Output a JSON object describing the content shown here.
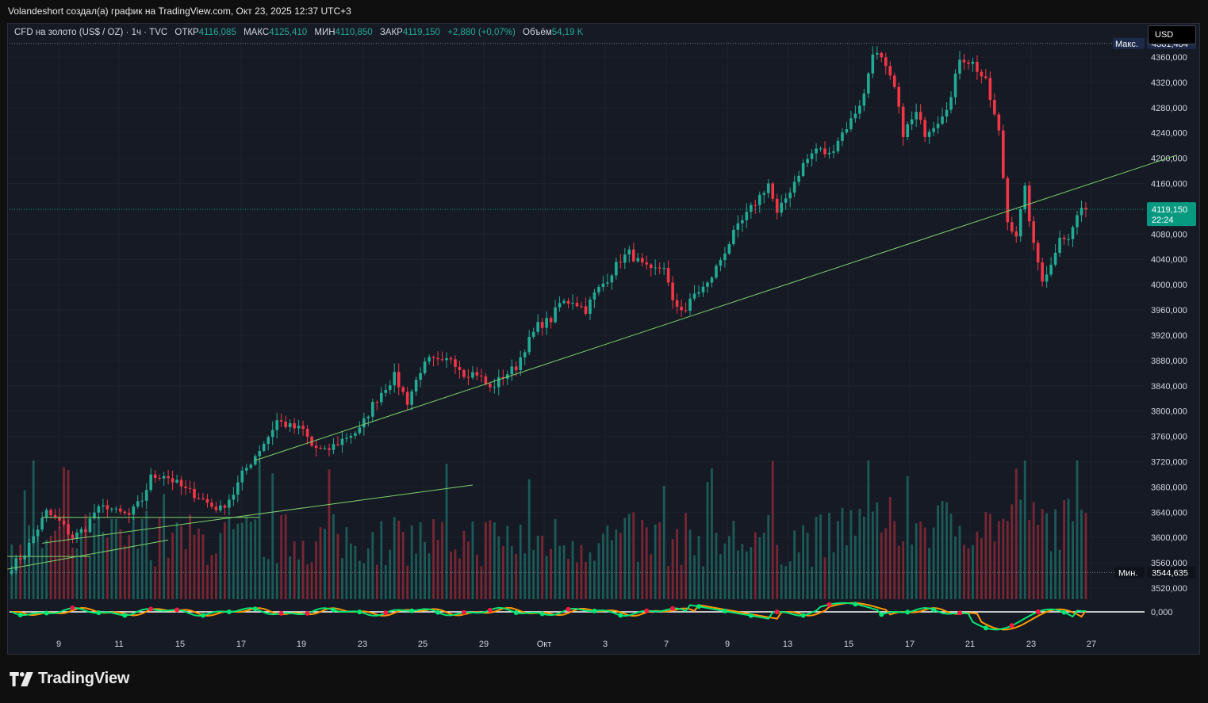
{
  "caption": "Volandeshort создал(а) график на TradingView.com, Окт 23, 2025 12:37 UTC+3",
  "legend": {
    "symbol": "CFD на золото (US$ / OZ) · 1ч · TVC",
    "open_label": "ОТКР",
    "open": "4116,085",
    "high_label": "МАКС",
    "high": "4125,410",
    "low_label": "МИН",
    "low": "4110,850",
    "close_label": "ЗАКР",
    "close": "4119,150",
    "change": "+2,880 (+0,07%)",
    "volume_label": "Объём",
    "volume": "54,19 K"
  },
  "currency": "USD",
  "brand": "TradingView",
  "colors": {
    "up": "#22ab94",
    "down": "#f23645",
    "trendline": "#7cd16a",
    "price_badge": "#089981",
    "max_badge": "#1e2a4a"
  },
  "chart_data": {
    "type": "candlestick",
    "instrument": "CFD на золото (US$ / OZ)",
    "timeframe": "1ч",
    "ylim": [
      3500,
      4390
    ],
    "y_ticks": [
      "4360,000",
      "4320,000",
      "4280,000",
      "4240,000",
      "4200,000",
      "4160,000",
      "4080,000",
      "4040,000",
      "4000,000",
      "3960,000",
      "3920,000",
      "3880,000",
      "3840,000",
      "3800,000",
      "3760,000",
      "3720,000",
      "3680,000",
      "3640,000",
      "3600,000",
      "3560,000",
      "3520,000"
    ],
    "y_tick_values": [
      4360,
      4320,
      4280,
      4240,
      4200,
      4160,
      4080,
      4040,
      4000,
      3960,
      3920,
      3880,
      3840,
      3800,
      3760,
      3720,
      3680,
      3640,
      3600,
      3560,
      3520
    ],
    "x_ticks": [
      "9",
      "11",
      "15",
      "17",
      "19",
      "23",
      "25",
      "29",
      "Окт",
      "3",
      "7",
      "9",
      "13",
      "15",
      "17",
      "21",
      "23",
      "27"
    ],
    "max_label": "Макс.",
    "max_value": "4381,484",
    "min_label": "Мин.",
    "min_value": "3544,635",
    "last_price": "4119,150",
    "countdown": "22:24",
    "oscillator_zero": "0,000",
    "price_path": [
      [
        0,
        3555
      ],
      [
        3,
        3575
      ],
      [
        6,
        3615
      ],
      [
        8,
        3640
      ],
      [
        11,
        3625
      ],
      [
        14,
        3600
      ],
      [
        17,
        3615
      ],
      [
        19,
        3640
      ],
      [
        22,
        3650
      ],
      [
        24,
        3640
      ],
      [
        27,
        3635
      ],
      [
        30,
        3660
      ],
      [
        32,
        3695
      ],
      [
        35,
        3700
      ],
      [
        38,
        3685
      ],
      [
        40,
        3675
      ],
      [
        43,
        3665
      ],
      [
        46,
        3650
      ],
      [
        48,
        3645
      ],
      [
        51,
        3670
      ],
      [
        53,
        3700
      ],
      [
        56,
        3730
      ],
      [
        59,
        3760
      ],
      [
        61,
        3785
      ],
      [
        64,
        3775
      ],
      [
        67,
        3770
      ],
      [
        69,
        3745
      ],
      [
        72,
        3735
      ],
      [
        74,
        3745
      ],
      [
        77,
        3760
      ],
      [
        80,
        3770
      ],
      [
        83,
        3810
      ],
      [
        85,
        3830
      ],
      [
        88,
        3855
      ],
      [
        91,
        3815
      ],
      [
        94,
        3865
      ],
      [
        96,
        3880
      ],
      [
        99,
        3875
      ],
      [
        101,
        3885
      ],
      [
        104,
        3860
      ],
      [
        107,
        3860
      ],
      [
        110,
        3835
      ],
      [
        113,
        3855
      ],
      [
        116,
        3870
      ],
      [
        118,
        3900
      ],
      [
        121,
        3935
      ],
      [
        124,
        3945
      ],
      [
        126,
        3970
      ],
      [
        129,
        3975
      ],
      [
        132,
        3960
      ],
      [
        134,
        3985
      ],
      [
        137,
        4010
      ],
      [
        140,
        4040
      ],
      [
        142,
        4050
      ],
      [
        145,
        4030
      ],
      [
        147,
        4020
      ],
      [
        150,
        4030
      ],
      [
        152,
        3970
      ],
      [
        155,
        3960
      ],
      [
        157,
        3985
      ],
      [
        160,
        4000
      ],
      [
        163,
        4040
      ],
      [
        166,
        4080
      ],
      [
        168,
        4100
      ],
      [
        171,
        4130
      ],
      [
        174,
        4160
      ],
      [
        176,
        4110
      ],
      [
        179,
        4150
      ],
      [
        182,
        4190
      ],
      [
        185,
        4215
      ],
      [
        188,
        4205
      ],
      [
        190,
        4230
      ],
      [
        193,
        4260
      ],
      [
        196,
        4300
      ],
      [
        198,
        4370
      ],
      [
        200,
        4355
      ],
      [
        203,
        4310
      ],
      [
        205,
        4240
      ],
      [
        208,
        4270
      ],
      [
        210,
        4240
      ],
      [
        213,
        4260
      ],
      [
        216,
        4295
      ],
      [
        218,
        4360
      ],
      [
        221,
        4350
      ],
      [
        224,
        4320
      ],
      [
        227,
        4240
      ],
      [
        229,
        4100
      ],
      [
        231,
        4080
      ],
      [
        233,
        4150
      ],
      [
        235,
        4060
      ],
      [
        237,
        4010
      ],
      [
        239,
        4030
      ],
      [
        241,
        4080
      ],
      [
        243,
        4070
      ],
      [
        245,
        4110
      ],
      [
        247,
        4119
      ]
    ],
    "trendlines": [
      {
        "from": [
          -1,
          3550
        ],
        "to": [
          36,
          3596
        ]
      },
      {
        "from": [
          7,
          3591
        ],
        "to": [
          106,
          3683
        ]
      },
      {
        "from": [
          56,
          3722
        ],
        "to": [
          268,
          4205
        ]
      },
      {
        "from": [
          7,
          3632
        ],
        "to": [
          57,
          3632
        ]
      },
      {
        "from": [
          -1,
          3570
        ],
        "to": [
          18,
          3570
        ]
      }
    ],
    "volume": {
      "pattern": "hourly bars, alternating green/red with session spikes"
    }
  }
}
